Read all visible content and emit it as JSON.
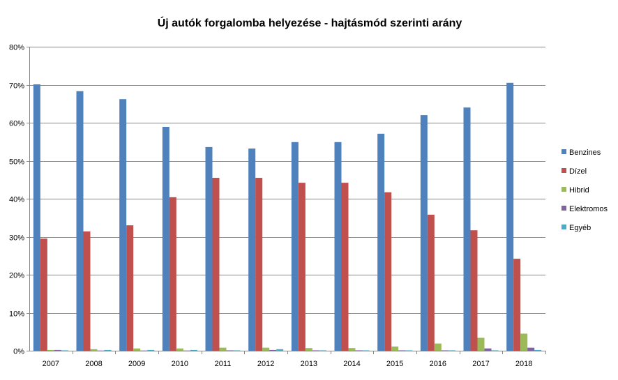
{
  "chart_data": {
    "type": "bar",
    "title": "Új autók forgalomba helyezése - hajtásmód szerinti arány",
    "xlabel": "",
    "ylabel": "",
    "ylim": [
      0,
      80
    ],
    "yticks": [
      "0%",
      "10%",
      "20%",
      "30%",
      "40%",
      "50%",
      "60%",
      "70%",
      "80%"
    ],
    "grid": true,
    "legend_position": "right",
    "categories": [
      "2007",
      "2008",
      "2009",
      "2010",
      "2011",
      "2012",
      "2013",
      "2014",
      "2015",
      "2016",
      "2017",
      "2018"
    ],
    "series": [
      {
        "name": "Benzines",
        "color": "#4f81bd",
        "values": [
          70.1,
          68.3,
          66.2,
          58.9,
          53.6,
          53.2,
          54.9,
          54.9,
          57.1,
          62.0,
          64.0,
          70.5
        ]
      },
      {
        "name": "Dízel",
        "color": "#c0504d",
        "values": [
          29.5,
          31.4,
          33.0,
          40.4,
          45.5,
          45.5,
          44.2,
          44.2,
          41.7,
          35.8,
          31.7,
          24.2
        ]
      },
      {
        "name": "Hibrid",
        "color": "#9bbb59",
        "values": [
          0.2,
          0.4,
          0.6,
          0.6,
          0.8,
          0.8,
          0.7,
          0.7,
          1.1,
          1.9,
          3.4,
          4.5
        ]
      },
      {
        "name": "Elektromos",
        "color": "#8064a2",
        "values": [
          0.2,
          0.05,
          0.05,
          0.05,
          0.1,
          0.2,
          0.1,
          0.1,
          0.1,
          0.1,
          0.6,
          0.8
        ]
      },
      {
        "name": "Egyéb",
        "color": "#4bacc6",
        "values": [
          0.1,
          0.2,
          0.2,
          0.2,
          0.1,
          0.4,
          0.1,
          0.1,
          0.1,
          0.1,
          0.1,
          0.2
        ]
      }
    ]
  }
}
